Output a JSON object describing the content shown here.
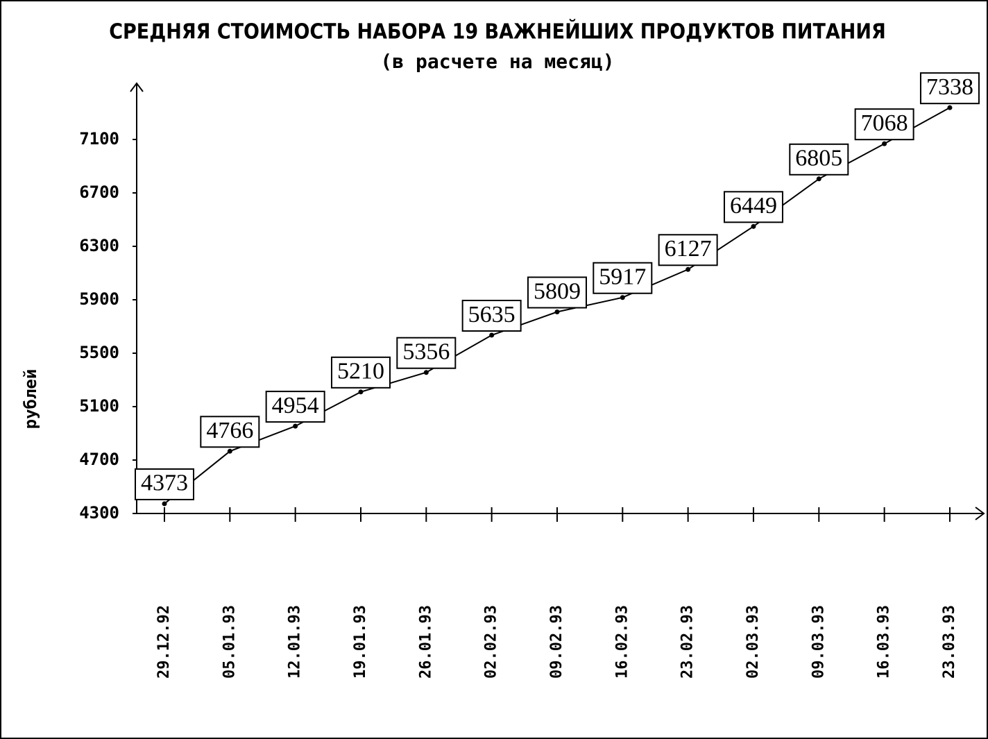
{
  "chart_data": {
    "type": "line",
    "title": "СРЕДНЯЯ СТОИМОСТЬ НАБОРА 19 ВАЖНЕЙШИХ ПРОДУКТОВ ПИТАНИЯ",
    "subtitle": "(в расчете на месяц)",
    "y_label": "рублей",
    "categories": [
      "29.12.92",
      "05.01.93",
      "12.01.93",
      "19.01.93",
      "26.01.93",
      "02.02.93",
      "09.02.93",
      "16.02.93",
      "23.02.93",
      "02.03.93",
      "09.03.93",
      "16.03.93",
      "23.03.93"
    ],
    "values": [
      4373,
      4766,
      4954,
      5210,
      5356,
      5635,
      5809,
      5917,
      6127,
      6449,
      6805,
      7068,
      7338
    ],
    "color": "#000000",
    "ylim": [
      4300,
      7500
    ],
    "yticks": [
      4300,
      4700,
      5100,
      5500,
      5900,
      6300,
      6700,
      7100
    ]
  }
}
